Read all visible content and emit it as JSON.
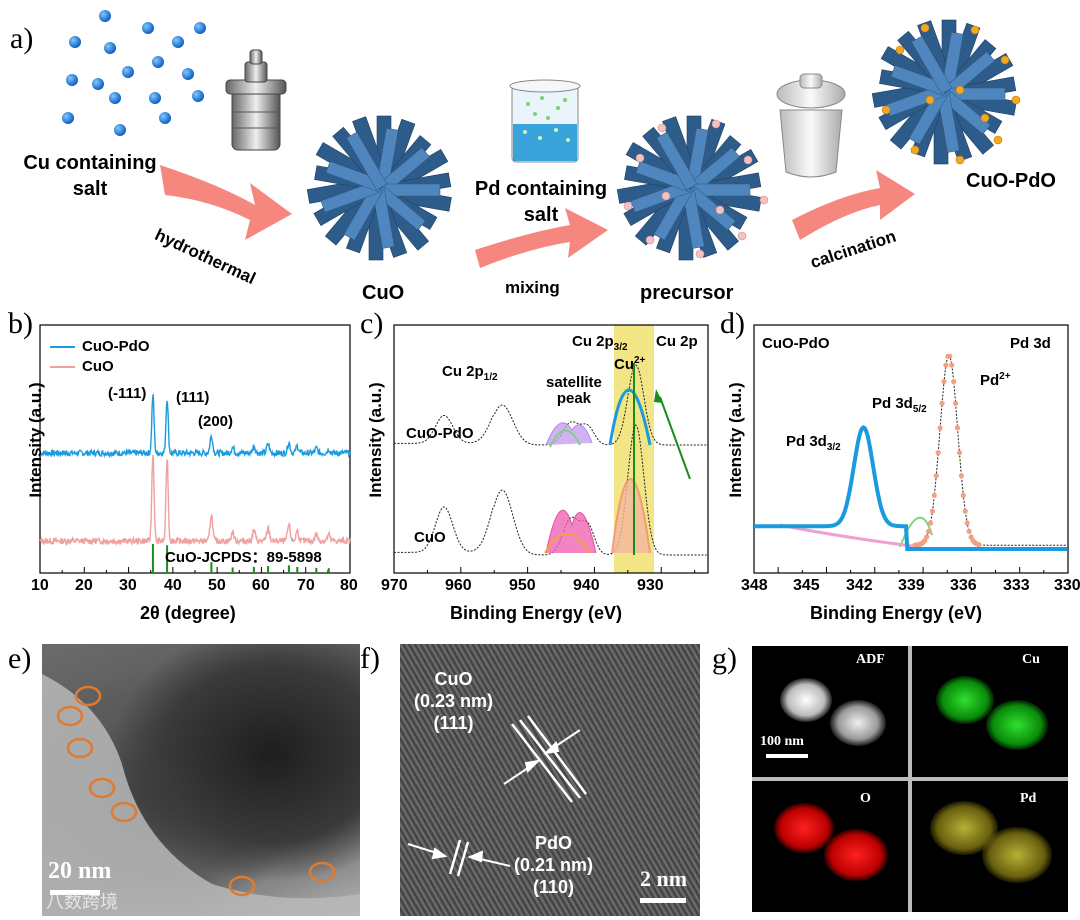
{
  "panels": {
    "a": {
      "label": "a)",
      "cu_salt_line1": "Cu containing",
      "cu_salt_line2": "salt",
      "hydrothermal": "hydrothermal",
      "cuo": "CuO",
      "pd_salt_line1": "Pd containing",
      "pd_salt_line2": "salt",
      "mixing": "mixing",
      "precursor": "precursor",
      "calcination": "calcination",
      "product": "CuO-PdO"
    },
    "b": {
      "label": "b)",
      "ylabel": "Intensity (a.u.)",
      "xlabel": "2θ (degree)",
      "legend": [
        "CuO-PdO",
        "CuO"
      ],
      "peaks": [
        "(-111)",
        "(111)",
        "(200)"
      ],
      "ref": "CuO-JCPDS：89-5898",
      "xticks": [
        "10",
        "20",
        "30",
        "40",
        "50",
        "60",
        "70",
        "80"
      ]
    },
    "c": {
      "label": "c)",
      "ylabel": "Intensity (a.u.)",
      "xlabel": "Binding Energy (eV)",
      "cu2p12": "Cu 2p",
      "cu2p12_sub": "1/2",
      "cu2p32": "Cu 2p",
      "cu2p32_sub": "3/2",
      "cu2p": "Cu 2p",
      "cu2plus": "Cu",
      "cu2plus_sup": "2+",
      "satellite1": "satellite",
      "satellite2": "peak",
      "curve_top": "CuO-PdO",
      "curve_bottom": "CuO",
      "xticks": [
        "970",
        "960",
        "950",
        "940",
        "930"
      ]
    },
    "d": {
      "label": "d)",
      "ylabel": "Intensity (a.u.)",
      "xlabel": "Binding Energy (eV)",
      "sample": "CuO-PdO",
      "region": "Pd 3d",
      "pd32": "Pd 3d",
      "pd32_sub": "3/2",
      "pd52": "Pd 3d",
      "pd52_sub": "5/2",
      "pd2plus": "Pd",
      "pd2plus_sup": "2+",
      "xticks": [
        "348",
        "345",
        "342",
        "339",
        "336",
        "333",
        "330"
      ]
    },
    "e": {
      "label": "e)",
      "scale": "20 nm",
      "watermark": "八数跨境"
    },
    "f": {
      "label": "f)",
      "cuo1": "CuO",
      "cuo2": "(0.23 nm)",
      "cuo3": "(111)",
      "pdo1": "PdO",
      "pdo2": "(0.21 nm)",
      "pdo3": "(110)",
      "scale": "2 nm"
    },
    "g": {
      "label": "g)",
      "adf": "ADF",
      "cu": "Cu",
      "o": "O",
      "pd": "Pd",
      "scale": "100 nm"
    }
  },
  "colors": {
    "cuo_pdo_line": "#1a9be0",
    "cuo_line": "#f0a0a0",
    "jcpds": "#1a8c1a",
    "arrow": "#f47a70",
    "nanorod": "#2e5c8a",
    "highlight": "#f0e070"
  }
}
